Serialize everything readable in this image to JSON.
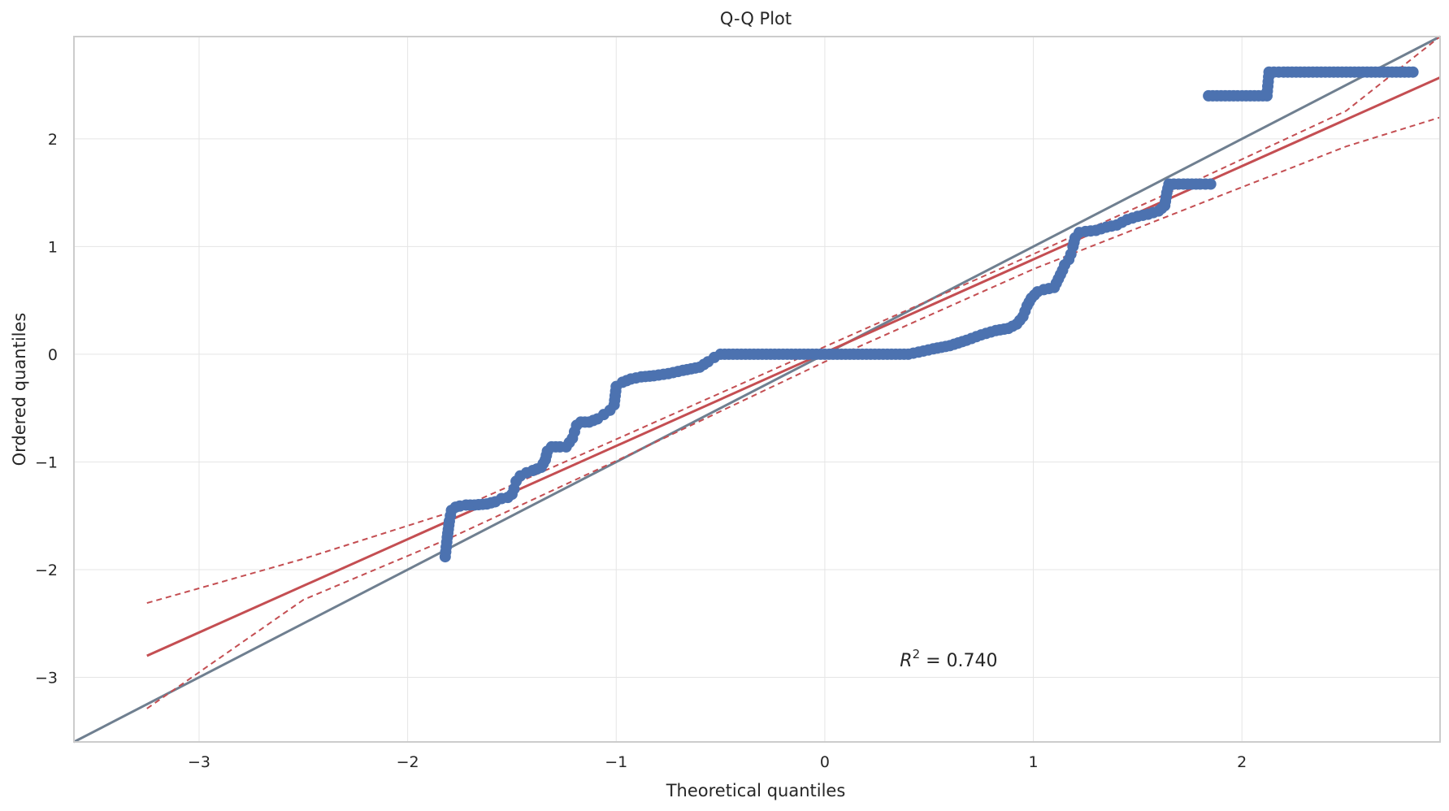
{
  "chart_data": {
    "type": "scatter",
    "title": "Q-Q Plot",
    "xlabel": "Theoretical quantiles",
    "ylabel": "Ordered quantiles",
    "xlim": [
      -3.6,
      2.95
    ],
    "ylim": [
      -3.6,
      2.95
    ],
    "xticks": [
      -3,
      -2,
      -1,
      0,
      1,
      2
    ],
    "yticks": [
      -3,
      -2,
      -1,
      0,
      1,
      2
    ],
    "xtick_labels": [
      "−3",
      "−2",
      "−1",
      "0",
      "1",
      "2"
    ],
    "ytick_labels": [
      "−3",
      "−2",
      "−1",
      "0",
      "1",
      "2"
    ],
    "grid": true,
    "annotation": {
      "r_label": "R",
      "exponent": "2",
      "value_text": " = 0.740",
      "x": 0.36,
      "y": -2.9
    },
    "points": [
      [
        -1.82,
        -1.88
      ],
      [
        -1.81,
        -1.7
      ],
      [
        -1.8,
        -1.55
      ],
      [
        -1.79,
        -1.45
      ],
      [
        -1.77,
        -1.42
      ],
      [
        -1.75,
        -1.41
      ],
      [
        -1.72,
        -1.4
      ],
      [
        -1.68,
        -1.4
      ],
      [
        -1.62,
        -1.39
      ],
      [
        -1.58,
        -1.37
      ],
      [
        -1.55,
        -1.34
      ],
      [
        -1.52,
        -1.33
      ],
      [
        -1.5,
        -1.3
      ],
      [
        -1.49,
        -1.25
      ],
      [
        -1.48,
        -1.18
      ],
      [
        -1.46,
        -1.13
      ],
      [
        -1.43,
        -1.1
      ],
      [
        -1.4,
        -1.08
      ],
      [
        -1.36,
        -1.05
      ],
      [
        -1.34,
        -0.98
      ],
      [
        -1.33,
        -0.9
      ],
      [
        -1.31,
        -0.86
      ],
      [
        -1.27,
        -0.86
      ],
      [
        -1.24,
        -0.86
      ],
      [
        -1.21,
        -0.78
      ],
      [
        -1.2,
        -0.72
      ],
      [
        -1.19,
        -0.66
      ],
      [
        -1.17,
        -0.63
      ],
      [
        -1.13,
        -0.63
      ],
      [
        -1.09,
        -0.6
      ],
      [
        -1.06,
        -0.56
      ],
      [
        -1.03,
        -0.52
      ],
      [
        -1.01,
        -0.47
      ],
      [
        -1.0,
        -0.3
      ],
      [
        -0.97,
        -0.26
      ],
      [
        -0.93,
        -0.23
      ],
      [
        -0.88,
        -0.21
      ],
      [
        -0.82,
        -0.2
      ],
      [
        -0.75,
        -0.18
      ],
      [
        -0.68,
        -0.15
      ],
      [
        -0.6,
        -0.12
      ],
      [
        -0.56,
        -0.07
      ],
      [
        -0.53,
        -0.03
      ],
      [
        -0.5,
        0.0
      ],
      [
        -0.4,
        0.0
      ],
      [
        -0.3,
        0.0
      ],
      [
        -0.2,
        0.0
      ],
      [
        -0.1,
        0.0
      ],
      [
        0.0,
        0.0
      ],
      [
        0.1,
        0.0
      ],
      [
        0.2,
        0.0
      ],
      [
        0.3,
        0.0
      ],
      [
        0.4,
        0.0
      ],
      [
        0.45,
        0.02
      ],
      [
        0.52,
        0.05
      ],
      [
        0.6,
        0.08
      ],
      [
        0.68,
        0.13
      ],
      [
        0.75,
        0.18
      ],
      [
        0.82,
        0.22
      ],
      [
        0.88,
        0.24
      ],
      [
        0.92,
        0.28
      ],
      [
        0.95,
        0.35
      ],
      [
        0.97,
        0.45
      ],
      [
        0.99,
        0.52
      ],
      [
        1.02,
        0.58
      ],
      [
        1.05,
        0.6
      ],
      [
        1.1,
        0.62
      ],
      [
        1.12,
        0.7
      ],
      [
        1.14,
        0.78
      ],
      [
        1.15,
        0.83
      ],
      [
        1.17,
        0.88
      ],
      [
        1.18,
        0.93
      ],
      [
        1.19,
        1.0
      ],
      [
        1.2,
        1.08
      ],
      [
        1.22,
        1.13
      ],
      [
        1.25,
        1.14
      ],
      [
        1.3,
        1.15
      ],
      [
        1.35,
        1.18
      ],
      [
        1.4,
        1.2
      ],
      [
        1.45,
        1.25
      ],
      [
        1.5,
        1.28
      ],
      [
        1.55,
        1.3
      ],
      [
        1.6,
        1.33
      ],
      [
        1.63,
        1.38
      ],
      [
        1.64,
        1.5
      ],
      [
        1.65,
        1.58
      ],
      [
        1.72,
        1.58
      ],
      [
        1.8,
        1.58
      ],
      [
        1.85,
        1.58
      ],
      [
        1.84,
        2.4
      ],
      [
        1.92,
        2.4
      ],
      [
        2.0,
        2.4
      ],
      [
        2.08,
        2.4
      ],
      [
        2.12,
        2.4
      ],
      [
        2.13,
        2.62
      ],
      [
        2.2,
        2.62
      ],
      [
        2.3,
        2.62
      ],
      [
        2.4,
        2.62
      ],
      [
        2.5,
        2.62
      ],
      [
        2.6,
        2.62
      ],
      [
        2.7,
        2.62
      ],
      [
        2.82,
        2.62
      ]
    ],
    "series": [
      {
        "type": "line",
        "color": "#6f7f90",
        "points": [
          [
            -3.6,
            -3.6
          ],
          [
            2.95,
            2.95
          ]
        ]
      },
      {
        "type": "line",
        "color": "#c44e52",
        "points": [
          [
            -3.25,
            -2.8
          ],
          [
            2.95,
            2.57
          ]
        ]
      },
      {
        "type": "line",
        "color": "#c44e52",
        "dashed": true,
        "points": [
          [
            -3.25,
            -2.31
          ],
          [
            -2.5,
            -1.9
          ],
          [
            -1.8,
            -1.47
          ],
          [
            -1.0,
            -0.79
          ],
          [
            0.0,
            0.07
          ],
          [
            1.0,
            0.93
          ],
          [
            1.8,
            1.63
          ],
          [
            2.5,
            2.26
          ],
          [
            2.95,
            2.95
          ]
        ]
      },
      {
        "type": "line",
        "color": "#c44e52",
        "dashed": true,
        "points": [
          [
            -3.25,
            -3.29
          ],
          [
            -2.5,
            -2.28
          ],
          [
            -1.8,
            -1.71
          ],
          [
            -1.0,
            -0.99
          ],
          [
            0.0,
            -0.07
          ],
          [
            1.0,
            0.79
          ],
          [
            1.8,
            1.4
          ],
          [
            2.5,
            1.93
          ],
          [
            2.95,
            2.2
          ]
        ]
      }
    ],
    "colors": {
      "points": "#4c72b0",
      "identity": "#6f7f90",
      "fit": "#c44e52",
      "grid": "#e5e5e5",
      "frame": "#cccccc"
    }
  }
}
